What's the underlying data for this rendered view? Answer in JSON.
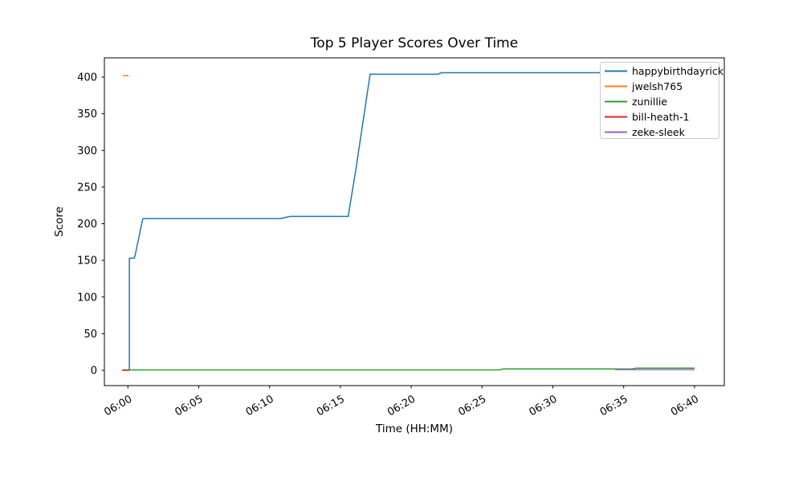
{
  "chart_data": {
    "type": "line",
    "title": "Top 5 Player Scores Over Time",
    "xlabel": "Time (HH:MM)",
    "ylabel": "Score",
    "x_unit": "minutes after 06:00",
    "x_ticks": [
      {
        "t": 0,
        "label": "06:00"
      },
      {
        "t": 5,
        "label": "06:05"
      },
      {
        "t": 10,
        "label": "06:10"
      },
      {
        "t": 15,
        "label": "06:15"
      },
      {
        "t": 20,
        "label": "06:20"
      },
      {
        "t": 25,
        "label": "06:25"
      },
      {
        "t": 30,
        "label": "06:30"
      },
      {
        "t": 35,
        "label": "06:35"
      },
      {
        "t": 40,
        "label": "06:40"
      }
    ],
    "y_ticks": [
      0,
      50,
      100,
      150,
      200,
      250,
      300,
      350,
      400
    ],
    "ylim": [
      -20.8,
      426.3
    ],
    "xlim_minutes": [
      -1.66,
      42.1
    ],
    "grid": false,
    "legend_position": "upper right",
    "series": [
      {
        "name": "happybirthdayrick",
        "color": "#1f77b4",
        "points": [
          [
            0.1,
            0
          ],
          [
            0.1,
            153
          ],
          [
            0.45,
            153
          ],
          [
            0.5,
            156
          ],
          [
            1.05,
            207
          ],
          [
            10.75,
            207
          ],
          [
            11.45,
            210
          ],
          [
            15.55,
            210
          ],
          [
            16.1,
            275
          ],
          [
            17.1,
            404
          ],
          [
            21.85,
            404
          ],
          [
            22.15,
            406
          ],
          [
            40,
            406
          ]
        ]
      },
      {
        "name": "jwelsh765",
        "color": "#ff7f0e",
        "points": [
          [
            -0.35,
            402
          ],
          [
            0.05,
            402
          ]
        ]
      },
      {
        "name": "zunillie",
        "color": "#2ca02c",
        "points": [
          [
            -0.4,
            0.5
          ],
          [
            26.2,
            0.5
          ],
          [
            26.5,
            2
          ],
          [
            35.6,
            2
          ],
          [
            35.9,
            3
          ],
          [
            40,
            3
          ]
        ]
      },
      {
        "name": "bill-heath-1",
        "color": "#d62728",
        "points": [
          [
            -0.4,
            0
          ],
          [
            0.1,
            0
          ]
        ]
      },
      {
        "name": "zeke-sleek",
        "color": "#9467bd",
        "points": [
          [
            34.4,
            1
          ],
          [
            40,
            1
          ]
        ]
      }
    ]
  }
}
